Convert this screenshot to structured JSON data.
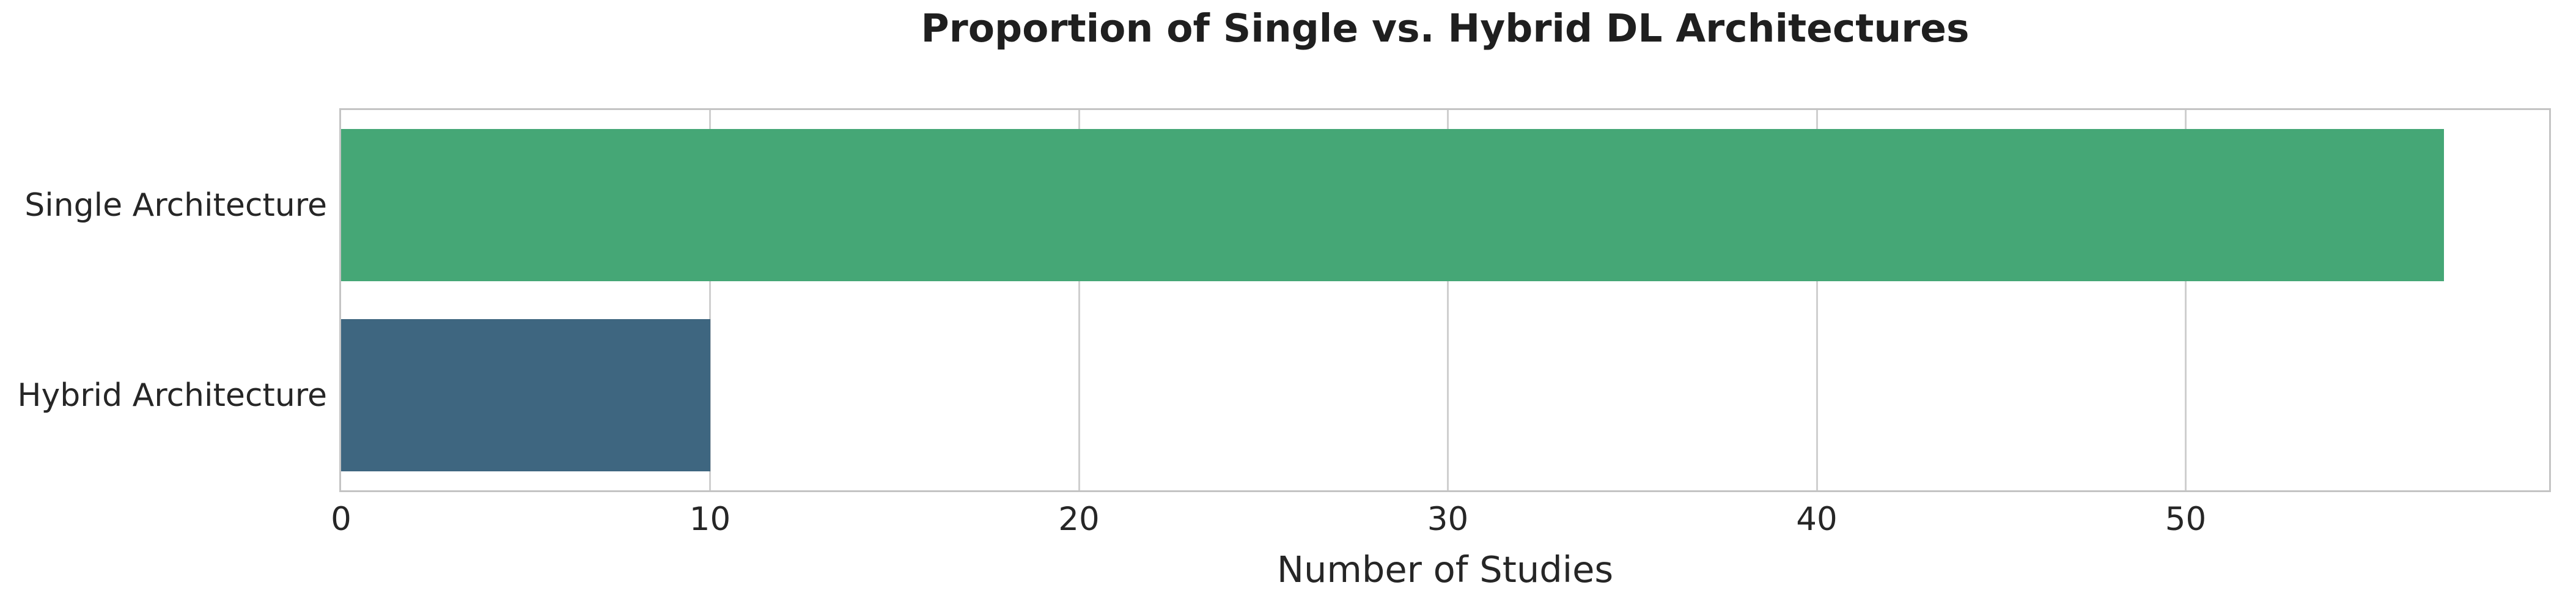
{
  "chart_data": {
    "type": "bar",
    "orientation": "horizontal",
    "title": "Proportion of Single vs. Hybrid DL Architectures",
    "categories": [
      "Single Architecture",
      "Hybrid Architecture"
    ],
    "values": [
      57,
      10
    ],
    "xlabel": "Number of Studies",
    "ylabel": "",
    "xlim": [
      0,
      59.85
    ],
    "xticks": [
      0,
      10,
      20,
      30,
      40,
      50
    ],
    "grid": true,
    "legend_position": "none",
    "bar_colors": [
      "#45a776",
      "#3e6680"
    ],
    "bar_height_fraction": 0.8,
    "background_color": "#ffffff",
    "grid_color": "#cfcfcf",
    "spine_color": "#c4c4c4",
    "text_color": "#262626"
  }
}
